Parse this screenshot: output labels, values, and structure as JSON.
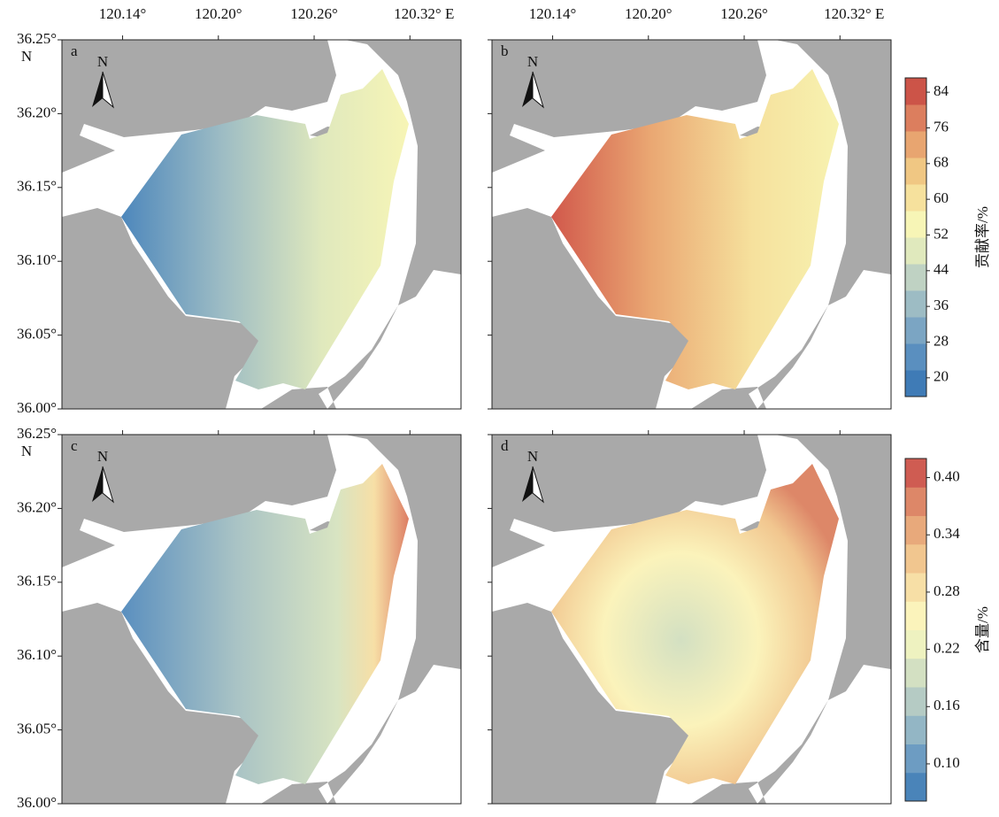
{
  "x_axis": {
    "lim": [
      120.102,
      120.352
    ],
    "ticks": [
      {
        "value": 120.14,
        "label": "120.14°"
      },
      {
        "value": 120.2,
        "label": "120.20°"
      },
      {
        "value": 120.26,
        "label": "120.26°"
      },
      {
        "value": 120.32,
        "label": "120.32° E"
      }
    ]
  },
  "y_axis": {
    "lim": [
      36.0,
      36.25
    ],
    "hemisphere": "N",
    "ticks": [
      {
        "value": 36.0,
        "label": "36.00°"
      },
      {
        "value": 36.05,
        "label": "36.05°"
      },
      {
        "value": 36.1,
        "label": "36.10°"
      },
      {
        "value": 36.15,
        "label": "36.15°"
      },
      {
        "value": 36.2,
        "label": "36.20°"
      },
      {
        "value": 36.25,
        "label": "36.25°"
      }
    ]
  },
  "north_arrow": "N",
  "panels": [
    {
      "label": "a"
    },
    {
      "label": "b"
    },
    {
      "label": "c"
    },
    {
      "label": "d"
    }
  ],
  "colorbars": [
    {
      "title": "贡献率/%",
      "lim": [
        15.8,
        87.2
      ],
      "ticks": [
        20,
        28,
        36,
        44,
        52,
        60,
        68,
        76,
        84
      ],
      "colors": [
        "#3f7bb6",
        "#5a8fbf",
        "#7ba5c3",
        "#9dbcc4",
        "#bfd2c3",
        "#e0e9bd",
        "#f7f5b6",
        "#f6e19d",
        "#f0c783",
        "#e8a570",
        "#dc7e5e",
        "#cc5448"
      ]
    },
    {
      "title": "含量/%",
      "lim": [
        0.061,
        0.42
      ],
      "ticks": [
        {
          "value": 0.1,
          "label": "0.10"
        },
        0.16,
        0.22,
        0.28,
        0.34,
        {
          "value": 0.4,
          "label": "0.40"
        }
      ],
      "colors": [
        "#4a84b9",
        "#6d9cc2",
        "#93b6c5",
        "#b5cbc4",
        "#d3e0c2",
        "#eef2c0",
        "#fbf3bb",
        "#f7dfa6",
        "#f1c68f",
        "#e8a97b",
        "#dd8768",
        "#cf5c52"
      ]
    }
  ]
}
